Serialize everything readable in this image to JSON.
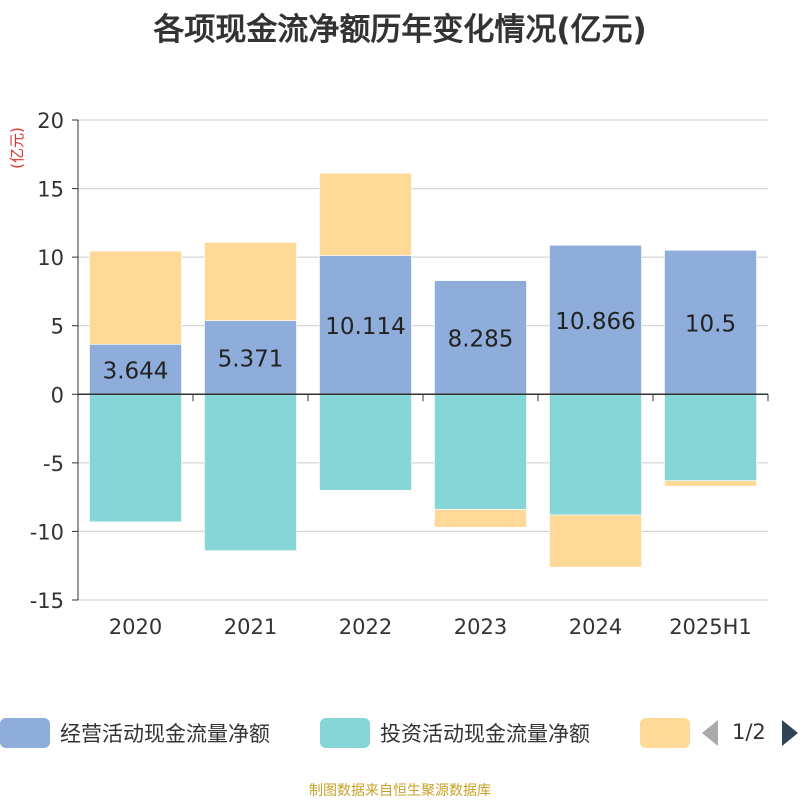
{
  "chart_data": {
    "type": "bar",
    "stacked": true,
    "title": "各项现金流净额历年变化情况(亿元)",
    "ylabel": "(亿元)",
    "categories": [
      "2020",
      "2021",
      "2022",
      "2023",
      "2024",
      "2025H1"
    ],
    "ylim": [
      -15,
      20
    ],
    "yticks": [
      20,
      15,
      10,
      5,
      0,
      -5,
      -10,
      -15
    ],
    "grid": true,
    "series": [
      {
        "name": "经营活动现金流量净额",
        "color": "#8eadda",
        "values": [
          3.644,
          5.371,
          10.114,
          8.285,
          10.866,
          10.5
        ],
        "labels": [
          "3.644",
          "5.371",
          "10.114",
          "8.285",
          "10.866",
          "10.5"
        ]
      },
      {
        "name": "投资活动现金流量净额",
        "color": "#86d5d7",
        "values": [
          -9.3,
          -11.4,
          -7.0,
          -8.4,
          -8.8,
          -6.3
        ]
      },
      {
        "name": "",
        "color": "#fed998",
        "values": [
          6.8,
          5.7,
          6.0,
          -1.3,
          -3.8,
          -0.4
        ]
      }
    ],
    "legend_position": "bottom"
  },
  "legend": {
    "page_text": "1/2"
  },
  "source_note": "制图数据来自恒生聚源数据库"
}
